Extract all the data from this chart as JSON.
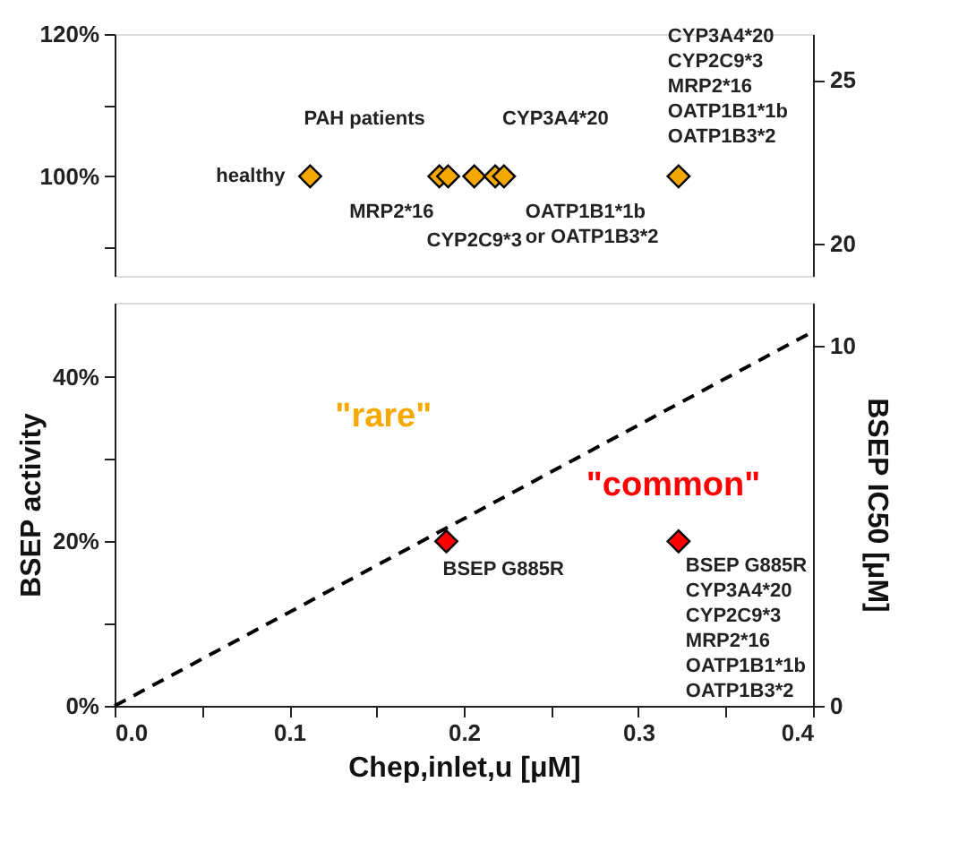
{
  "chart_data": [
    {
      "type": "scatter",
      "marker": "diamond",
      "tick_labels": "y",
      "xlim": [
        0,
        0.4
      ],
      "ylim": [
        86,
        120
      ],
      "yticks": [
        {
          "value": 90,
          "label": null
        },
        {
          "value": 100,
          "label": "100%"
        },
        {
          "value": 110,
          "label": null
        },
        {
          "value": 120,
          "label": "120%"
        }
      ],
      "y2lim": [
        19,
        26.4
      ],
      "y2ticks": [
        20,
        25
      ],
      "series": [
        {
          "color": "#f5a800",
          "x": [
            0.112,
            0.186,
            0.191,
            0.206,
            0.218,
            0.223,
            0.323
          ],
          "values": [
            100,
            100,
            100,
            100,
            100,
            100,
            100
          ]
        }
      ],
      "annotations": [
        {
          "text": "healthy",
          "x": 0.112,
          "y": 100
        },
        {
          "text": "PAH patients",
          "x": 0.186,
          "y": 100
        },
        {
          "text": "CYP3A4*20",
          "x": 0.218,
          "y": 100
        },
        {
          "text": "MRP2*16",
          "x": 0.191,
          "y": 100
        },
        {
          "text": "CYP2C9*3",
          "x": 0.206,
          "y": 100
        },
        {
          "text": "OATP1B1*1b\nor OATP1B3*2",
          "x": 0.223,
          "y": 100
        },
        {
          "text": "CYP3A4*20\nCYP2C9*3\nMRP2*16\nOATP1B1*1b\nOATP1B3*2",
          "x": 0.323,
          "y": 100
        }
      ]
    },
    {
      "type": "scatter",
      "marker": "diamond",
      "xlim": [
        0,
        0.4
      ],
      "xticks": [
        {
          "value": 0,
          "label": "0.0"
        },
        {
          "value": 0.05,
          "label": null
        },
        {
          "value": 0.1,
          "label": "0.1"
        },
        {
          "value": 0.15,
          "label": null
        },
        {
          "value": 0.2,
          "label": "0.2"
        },
        {
          "value": 0.25,
          "label": null
        },
        {
          "value": 0.3,
          "label": "0.3"
        },
        {
          "value": 0.35,
          "label": null
        },
        {
          "value": 0.4,
          "label": "0.4"
        }
      ],
      "ylim": [
        0,
        49
      ],
      "yticks": [
        {
          "value": 0,
          "label": "0%"
        },
        {
          "value": 10,
          "label": null
        },
        {
          "value": 20,
          "label": "20%"
        },
        {
          "value": 30,
          "label": null
        },
        {
          "value": 40,
          "label": "40%"
        }
      ],
      "y2lim": [
        0,
        11.2
      ],
      "y2ticks": [
        0,
        10
      ],
      "xlabel": "Chep,inlet,u [μM]",
      "ylabel": "BSEP activity",
      "y2label": "BSEP IC50 [μM]",
      "series": [
        {
          "color": "#ff0000",
          "x": [
            0.19,
            0.323
          ],
          "values": [
            20,
            20
          ]
        },
        {
          "type": "line",
          "axis": "y2",
          "line_style": "dashed",
          "marker": "none",
          "color": "#000000",
          "x": [
            0,
            0.4
          ],
          "values": [
            0,
            10.4
          ]
        }
      ],
      "annotations": [
        "\"rare\"",
        "\"common\"",
        {
          "text": "BSEP G885R",
          "x": 0.19,
          "y": 20
        },
        {
          "text": "BSEP G885R\nCYP3A4*20\nCYP2C9*3\nMRP2*16\nOATP1B1*1b\nOATP1B3*2",
          "x": 0.323,
          "y": 20
        }
      ]
    }
  ]
}
